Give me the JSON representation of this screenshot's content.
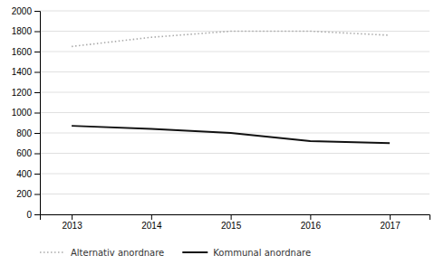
{
  "chart_data": {
    "type": "line",
    "x": [
      2013,
      2014,
      2015,
      2016,
      2017
    ],
    "series": [
      {
        "name": "Alternativ anordnare",
        "color": "#aaaaaa",
        "line_style": "dotted",
        "values": [
          1650,
          1740,
          1800,
          1800,
          1760
        ]
      },
      {
        "name": "Kommunal anordnare",
        "color": "#111111",
        "line_style": "solid",
        "values": [
          870,
          840,
          800,
          720,
          700
        ]
      }
    ],
    "xlim": [
      2012.6,
      2017.5
    ],
    "xticks": [
      2013,
      2014,
      2015,
      2016,
      2017
    ],
    "ylim": [
      0,
      2000
    ],
    "yticks": [
      0,
      200,
      400,
      600,
      800,
      1000,
      1200,
      1400,
      1600,
      1800,
      2000
    ],
    "grid": true,
    "legend": "bottom"
  }
}
